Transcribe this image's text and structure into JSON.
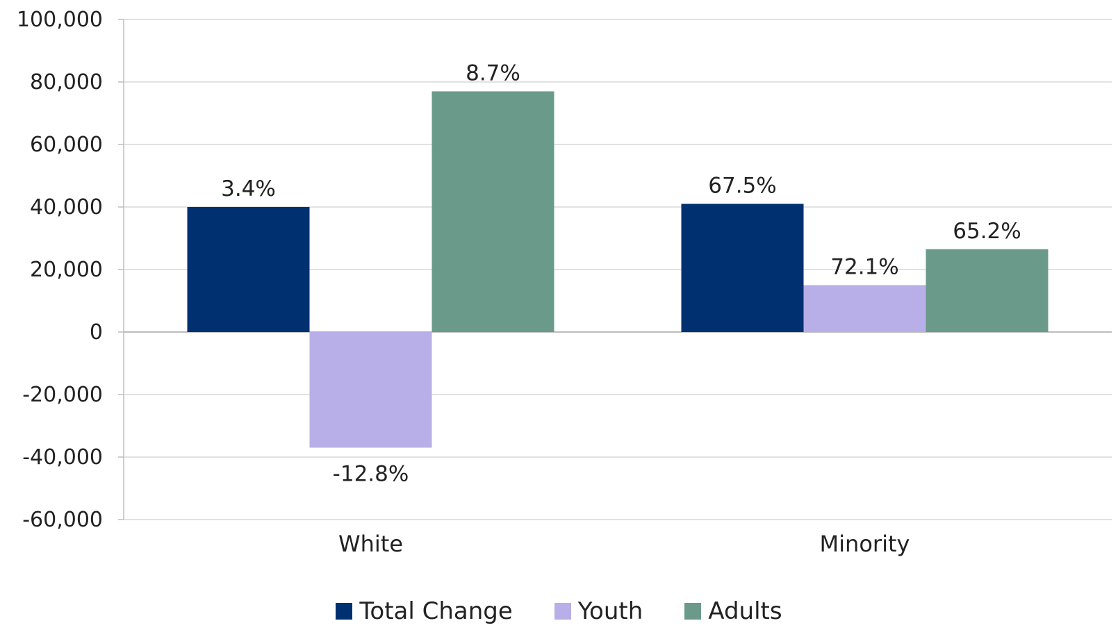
{
  "chart_data": {
    "type": "bar",
    "categories": [
      "White",
      "Minority"
    ],
    "series": [
      {
        "name": "Total Change",
        "color": "#003070",
        "values": [
          40000,
          41000
        ],
        "labels": [
          "3.4%",
          "67.5%"
        ]
      },
      {
        "name": "Youth",
        "color": "#b8aee8",
        "values": [
          -37000,
          15000
        ],
        "labels": [
          "-12.8%",
          "72.1%"
        ]
      },
      {
        "name": "Adults",
        "color": "#6a9a8a",
        "values": [
          77000,
          26500
        ],
        "labels": [
          "8.7%",
          "65.2%"
        ]
      }
    ],
    "ylim": [
      -60000,
      100000
    ],
    "yticks": [
      -60000,
      -40000,
      -20000,
      0,
      20000,
      40000,
      60000,
      80000,
      100000
    ],
    "ytick_labels": [
      "-60,000",
      "-40,000",
      "-20,000",
      "0",
      "20,000",
      "40,000",
      "60,000",
      "80,000",
      "100,000"
    ],
    "grid": true,
    "legend_position": "bottom"
  }
}
